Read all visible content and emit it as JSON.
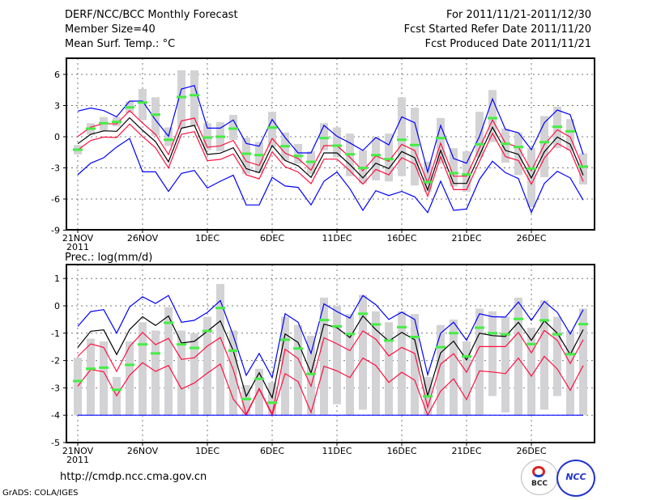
{
  "header": {
    "title": "DERF/NCC/BCC Monthly Forecast",
    "member_size": "Member Size=40",
    "variable": "Mean Surf. Temp.: °C",
    "period": "For 2011/11/21-2011/12/30",
    "started": "Fcst Started Refer Date 2011/11/20",
    "produced": "Fcst Produced Date 2011/11/21"
  },
  "footer": {
    "url": "http://cmdp.ncc.cma.gov.cn",
    "grads": "GrADS: COLA/IGES",
    "logo_bcc": "BCC",
    "logo_ncc": "NCC"
  },
  "colors": {
    "outer": "#0000ff",
    "inner": "#ff1040",
    "median": "#000000",
    "marker": "#44ee44",
    "bar": "#d3d3d6"
  },
  "chart_data": [
    {
      "type": "line",
      "title": "Mean Surf. Temp.: °C",
      "ylim": [
        -9,
        7.5
      ],
      "yticks": [
        6,
        3,
        0,
        -3,
        -6,
        -9
      ],
      "xtick_labels": [
        "21NOV",
        "26NOV",
        "1DEC",
        "6DEC",
        "11DEC",
        "16DEC",
        "21DEC",
        "26DEC"
      ],
      "xtick_year": "2011",
      "n_days": 40,
      "series": [
        {
          "name": "upper-outer",
          "color": "blue",
          "values": [
            2.47,
            2.77,
            2.52,
            1.92,
            3.43,
            3.43,
            1.61,
            0.05,
            4.6,
            4.93,
            0.83,
            0.83,
            1.61,
            -0.65,
            -0.91,
            1.66,
            -0.08,
            -1.56,
            -1.56,
            1.09,
            0.05,
            -0.6,
            -1.32,
            -0.08,
            -0.78,
            1.92,
            1.35,
            -3.4,
            1.09,
            -2.1,
            -2.55,
            0.05,
            3.64,
            0.7,
            0.39,
            -1.25,
            1.35,
            2.57,
            2.13,
            -1.71
          ]
        },
        {
          "name": "upper-inner",
          "color": "red",
          "values": [
            0.02,
            0.93,
            1.27,
            1.22,
            2.52,
            1.32,
            0.23,
            -1.72,
            1.53,
            1.79,
            -1.01,
            -0.88,
            -0.36,
            -2.37,
            -2.76,
            -0.16,
            -1.59,
            -2.1,
            -3.22,
            -0.86,
            -0.86,
            -1.98,
            -3.27,
            -1.85,
            -2.37,
            -0.73,
            -1.33,
            -4.44,
            -0.62,
            -3.8,
            -3.8,
            -1.07,
            1.61,
            -0.62,
            -0.99,
            -3.27,
            -0.75,
            0.67,
            -0.03,
            -3.01
          ]
        },
        {
          "name": "median",
          "color": "black",
          "values": [
            -0.68,
            0.23,
            0.57,
            0.52,
            1.82,
            0.62,
            -0.47,
            -2.42,
            0.83,
            1.09,
            -1.71,
            -1.58,
            -1.06,
            -3.07,
            -3.46,
            -0.86,
            -2.29,
            -2.8,
            -3.92,
            -1.56,
            -1.56,
            -2.68,
            -3.97,
            -2.55,
            -3.07,
            -1.43,
            -2.03,
            -5.14,
            -1.32,
            -4.5,
            -4.5,
            -1.77,
            0.91,
            -1.32,
            -1.69,
            -3.97,
            -1.45,
            -0.03,
            -0.73,
            -3.71
          ]
        },
        {
          "name": "lower-inner",
          "color": "red",
          "values": [
            -1.28,
            -0.37,
            -0.03,
            -0.08,
            1.22,
            0.02,
            -1.07,
            -3.02,
            0.23,
            0.49,
            -2.31,
            -2.18,
            -1.66,
            -3.67,
            -4.06,
            -1.46,
            -2.89,
            -3.4,
            -4.52,
            -2.16,
            -2.16,
            -3.28,
            -4.57,
            -3.15,
            -3.67,
            -2.03,
            -2.63,
            -5.74,
            -1.92,
            -5.1,
            -5.1,
            -2.37,
            0.31,
            -1.92,
            -2.29,
            -4.57,
            -2.05,
            -0.63,
            -1.33,
            -4.31
          ]
        },
        {
          "name": "lower-outer",
          "color": "blue",
          "values": [
            -3.66,
            -2.55,
            -2.03,
            -0.99,
            -0.16,
            -3.38,
            -3.38,
            -5.27,
            -3.53,
            -3.25,
            -4.94,
            -4.29,
            -3.71,
            -6.57,
            -6.57,
            -3.92,
            -4.75,
            -4.88,
            -6.57,
            -4.29,
            -3.4,
            -5.01,
            -7.09,
            -5.2,
            -5.67,
            -5.27,
            -5.79,
            -7.3,
            -4.29,
            -7.09,
            -6.96,
            -4.1,
            -2.36,
            -3.46,
            -4.03,
            -7.3,
            -4.5,
            -3.33,
            -3.97,
            -6.1
          ]
        }
      ],
      "markers": [
        -1.25,
        0.78,
        1.3,
        1.43,
        2.83,
        3.3,
        2.13,
        -0.29,
        3.82,
        4.0,
        -0.08,
        0,
        0.78,
        -1.64,
        -1.77,
        0.88,
        -0.91,
        -1.85,
        -2.42,
        -0.13,
        -0.86,
        -1.69,
        -3.01,
        -1.77,
        -2.16,
        -0.29,
        -0.8,
        -4.36,
        -0.13,
        -3.51,
        -3.64,
        -0.73,
        1.79,
        -0.68,
        -0.99,
        -3.07,
        -0.52,
        0.96,
        0.52,
        -2.88
      ],
      "bars": [
        [
          -1.7,
          -0.8
        ],
        [
          0.2,
          1.3
        ],
        [
          0.6,
          1.9
        ],
        [
          1.0,
          1.9
        ],
        [
          2.3,
          3.4
        ],
        [
          1.6,
          4.6
        ],
        [
          0.1,
          3.8
        ],
        [
          -0.9,
          0.9
        ],
        [
          0.8,
          6.4
        ],
        [
          1.0,
          6.4
        ],
        [
          -1.3,
          1.3
        ],
        [
          -1.4,
          1.4
        ],
        [
          -0.3,
          2.1
        ],
        [
          -3.6,
          -0.1
        ],
        [
          -3.5,
          -0.5
        ],
        [
          -1.0,
          2.4
        ],
        [
          -2.3,
          0.4
        ],
        [
          -2.6,
          -0.7
        ],
        [
          -3.6,
          -1.4
        ],
        [
          -1.3,
          1.3
        ],
        [
          -2.0,
          0.9
        ],
        [
          -3.8,
          0.3
        ],
        [
          -4.5,
          -1.3
        ],
        [
          -4.2,
          0.0
        ],
        [
          -4.3,
          0.3
        ],
        [
          -3.8,
          3.8
        ],
        [
          -4.7,
          2.8
        ],
        [
          -5.3,
          -2.4
        ],
        [
          -2.6,
          1.8
        ],
        [
          -4.8,
          -1.1
        ],
        [
          -5.3,
          -1.4
        ],
        [
          -2.0,
          2.4
        ],
        [
          -0.5,
          4.5
        ],
        [
          -2.5,
          0.8
        ],
        [
          -3.7,
          0.4
        ],
        [
          -6.8,
          -1.1
        ],
        [
          -3.9,
          2.0
        ],
        [
          -1.1,
          2.9
        ],
        [
          -1.3,
          1.7
        ],
        [
          -4.6,
          -1.6
        ]
      ]
    },
    {
      "type": "line",
      "title": "Prec.: log(mm/d)",
      "ylim": [
        -5,
        1.5
      ],
      "yticks": [
        1,
        0,
        -1,
        -2,
        -3,
        -4,
        -5
      ],
      "xtick_labels": [
        "21NOV",
        "26NOV",
        "1DEC",
        "6DEC",
        "11DEC",
        "16DEC",
        "21DEC",
        "26DEC"
      ],
      "xtick_year": "2011",
      "n_days": 40,
      "series": [
        {
          "name": "upper-outer",
          "color": "blue",
          "values": [
            -0.75,
            -0.21,
            -0.14,
            -1.0,
            -0.04,
            0.33,
            0.09,
            0.38,
            -0.6,
            -0.53,
            -0.24,
            0.19,
            -1.09,
            -2.54,
            -1.74,
            -2.62,
            -0.29,
            -0.6,
            -1.74,
            0.07,
            -0.21,
            -0.45,
            0.38,
            0.04,
            -0.5,
            -0.23,
            -0.5,
            -2.52,
            -1.0,
            -0.6,
            -1.26,
            -0.29,
            -0.4,
            -0.41,
            0.14,
            -0.53,
            0.16,
            -0.24,
            -1.03,
            -0.14
          ]
        },
        {
          "name": "upper-inner",
          "color": "red",
          "values": [
            -1.85,
            -1.39,
            -1.52,
            -2.4,
            -1.49,
            -0.97,
            -1.42,
            -1.19,
            -1.96,
            -1.9,
            -1.47,
            -1.16,
            -2.33,
            -3.96,
            -3.02,
            -3.96,
            -1.59,
            -1.93,
            -2.94,
            -1.17,
            -1.39,
            -1.64,
            -0.92,
            -1.22,
            -1.83,
            -1.52,
            -1.74,
            -3.71,
            -2.13,
            -1.75,
            -2.43,
            -1.49,
            -1.49,
            -1.49,
            -0.97,
            -1.72,
            -0.9,
            -1.26,
            -2.11,
            -1.24
          ]
        },
        {
          "name": "median",
          "color": "black",
          "values": [
            -1.52,
            -0.93,
            -0.88,
            -1.78,
            -0.87,
            -0.4,
            -0.72,
            -0.37,
            -1.36,
            -1.3,
            -0.93,
            -0.55,
            -1.64,
            -3.31,
            -2.45,
            -3.36,
            -1.03,
            -1.34,
            -2.46,
            -0.67,
            -0.8,
            -1.16,
            -0.37,
            -0.87,
            -1.29,
            -0.97,
            -1.24,
            -3.29,
            -1.72,
            -1.29,
            -1.98,
            -1.0,
            -1.09,
            -1.12,
            -0.6,
            -1.26,
            -0.55,
            -1.0,
            -1.78,
            -0.87
          ]
        },
        {
          "name": "lower-inner",
          "color": "red",
          "values": [
            -2.94,
            -2.33,
            -2.41,
            -3.29,
            -2.54,
            -2.08,
            -2.4,
            -2.18,
            -3.04,
            -2.82,
            -2.46,
            -2.13,
            -3.41,
            -4,
            -3.04,
            -4,
            -2.48,
            -2.77,
            -3.9,
            -2.21,
            -2.38,
            -2.62,
            -1.91,
            -2.18,
            -2.8,
            -2.43,
            -2.72,
            -4,
            -3.12,
            -2.67,
            -3.43,
            -2.38,
            -2.42,
            -2.48,
            -1.91,
            -2.57,
            -1.85,
            -2.31,
            -3.09,
            -2.18
          ]
        },
        {
          "name": "lower-outer",
          "color": "blue",
          "values": [
            -4,
            -4,
            -4,
            -4,
            -4,
            -4,
            -4,
            -4,
            -4,
            -4,
            -4,
            -4,
            -4,
            -4,
            -4,
            -4,
            -4,
            -4,
            -4,
            -4,
            -4,
            -4,
            -4,
            -4,
            -4,
            -4,
            -4,
            -4,
            -4,
            -4,
            -4,
            -4,
            -4,
            -4,
            -4,
            -4,
            -4,
            -4,
            -4,
            -4
          ]
        }
      ],
      "markers": [
        -2.75,
        -2.3,
        -2.26,
        -3.07,
        -2.16,
        -1.41,
        -1.74,
        -0.62,
        -1.41,
        -1.54,
        -0.92,
        -0.08,
        -1.64,
        -3.41,
        -2.67,
        -3.54,
        -1.24,
        -1.56,
        -2.49,
        -0.52,
        -0.75,
        -1.03,
        -0.29,
        -0.68,
        -1.27,
        -0.78,
        -1.14,
        -3.31,
        -1.51,
        -1.0,
        -1.85,
        -0.8,
        -1.0,
        -1.04,
        -0.48,
        -1.4,
        -0.53,
        -1.04,
        -1.77,
        -0.67
      ],
      "bars": [
        [
          -4,
          -1.9
        ],
        [
          -4,
          -1.2
        ],
        [
          -4,
          -1.3
        ],
        [
          -4,
          -2.6
        ],
        [
          -4,
          -1.3
        ],
        [
          -4,
          -0.6
        ],
        [
          -4,
          -0.9
        ],
        [
          -4,
          -0.05
        ],
        [
          -4,
          -0.9
        ],
        [
          -4,
          -1.0
        ],
        [
          -4,
          -0.4
        ],
        [
          -4,
          0.8
        ],
        [
          -4,
          -0.9
        ],
        [
          -4,
          -2.9
        ],
        [
          -4,
          -2.3
        ],
        [
          -4,
          -2.8
        ],
        [
          -4,
          -0.4
        ],
        [
          -4,
          -0.7
        ],
        [
          -4,
          -1.1
        ],
        [
          -4,
          0.3
        ],
        [
          -3.6,
          0.0
        ],
        [
          -4,
          -0.3
        ],
        [
          -3.8,
          0.4
        ],
        [
          -4,
          -0.2
        ],
        [
          -4,
          -0.6
        ],
        [
          -4,
          -0.2
        ],
        [
          -4,
          -0.3
        ],
        [
          -4,
          -2.6
        ],
        [
          -4,
          -0.7
        ],
        [
          -4,
          -0.5
        ],
        [
          -4,
          -1.3
        ],
        [
          -4,
          -0.1
        ],
        [
          -3.3,
          -0.2
        ],
        [
          -3.9,
          -0.4
        ],
        [
          -4,
          0.3
        ],
        [
          -4,
          -0.8
        ],
        [
          -3.8,
          0.2
        ],
        [
          -3.3,
          -0.4
        ],
        [
          -4,
          -0.9
        ],
        [
          -4,
          -0.1
        ]
      ]
    }
  ]
}
